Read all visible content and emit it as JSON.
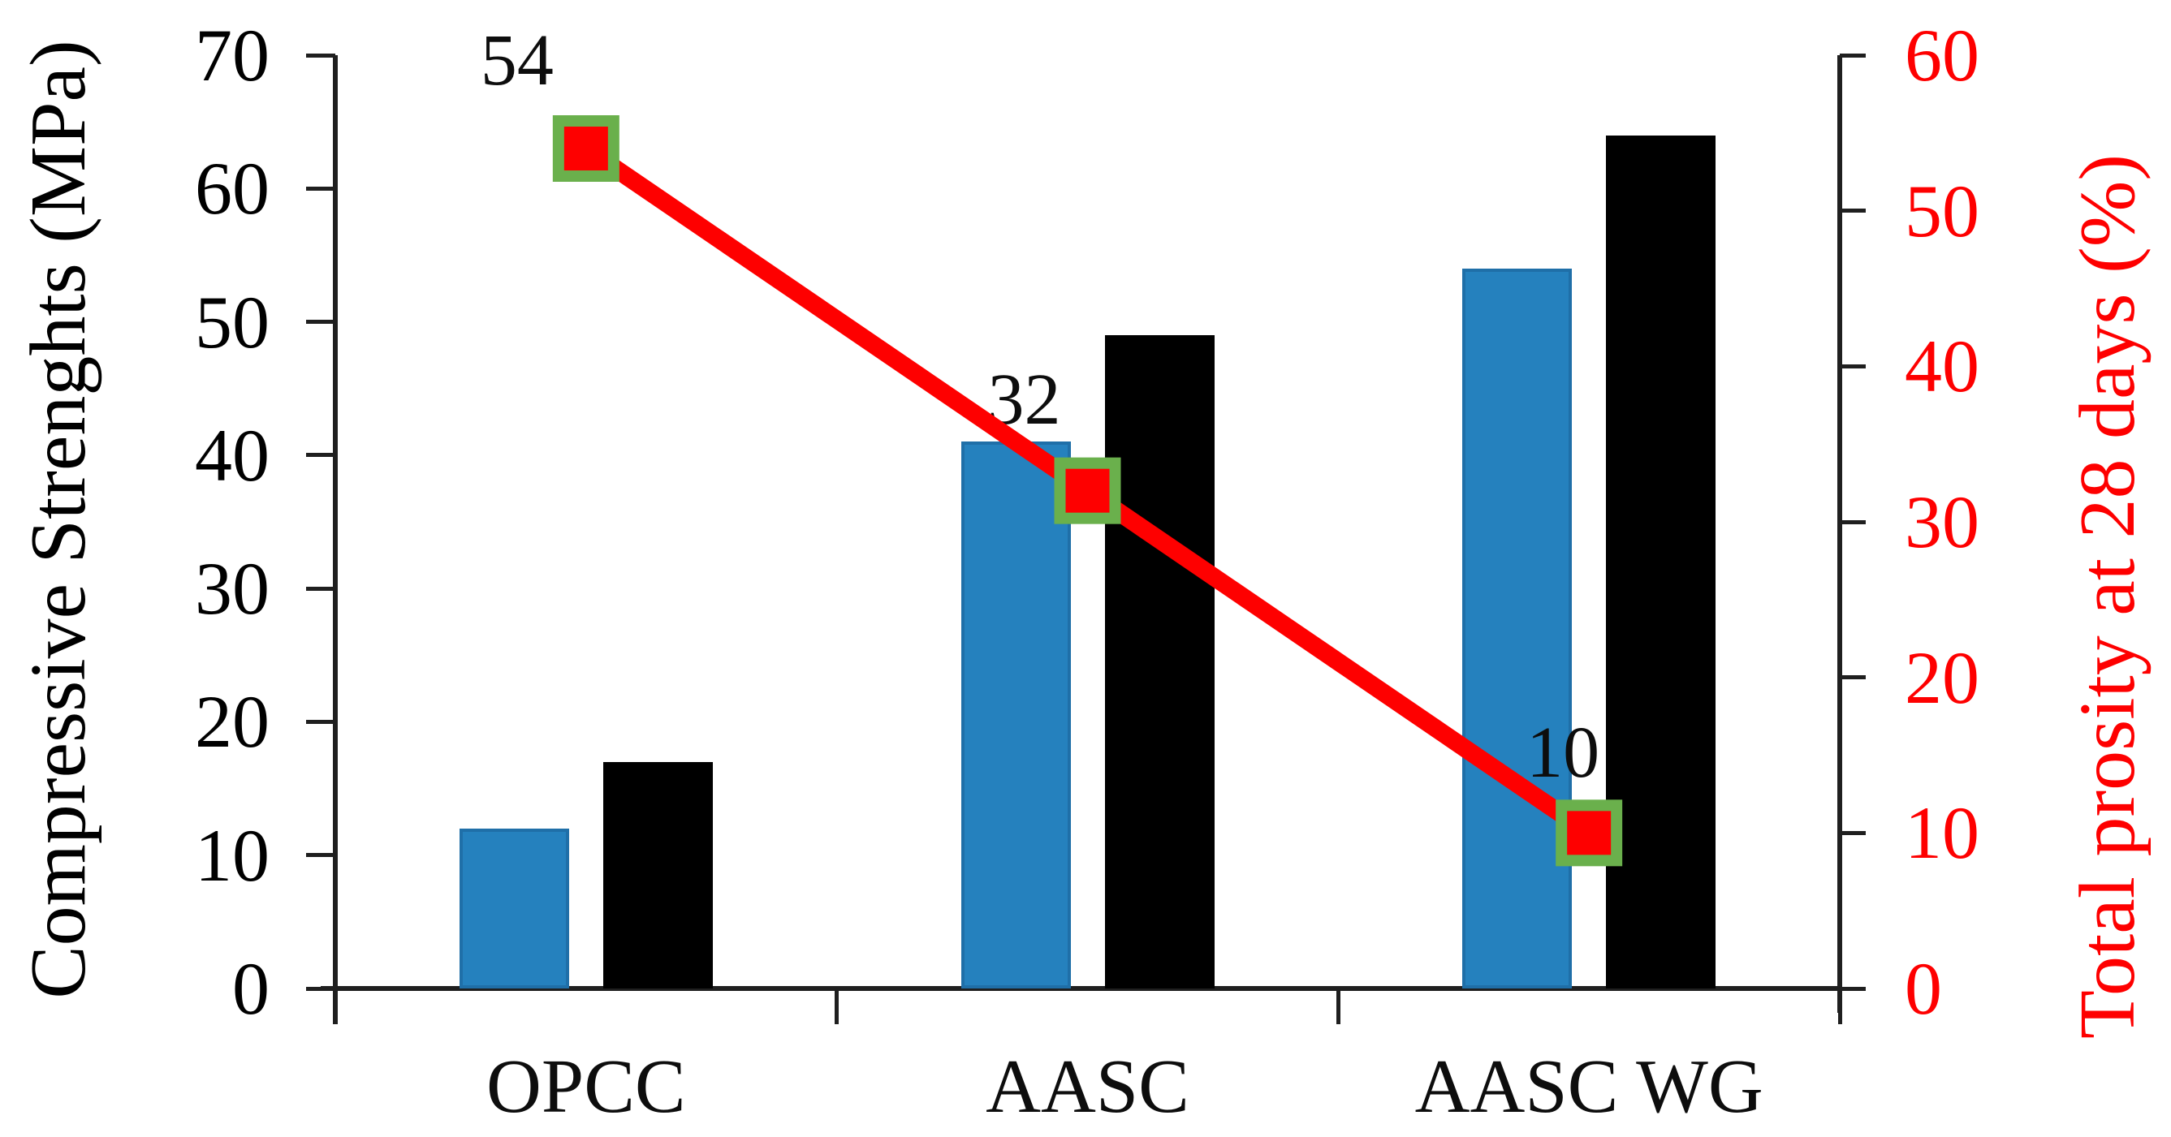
{
  "chart_data": {
    "type": "bar",
    "subtype": "grouped-bars-with-line-overlay",
    "background": "#FFFFFF",
    "grid": false,
    "legend": false,
    "title": "",
    "categories": [
      "OPCC",
      "AASC",
      "AASC WG"
    ],
    "series": [
      {
        "name": "compressive-strength-blue-bar",
        "type": "bar",
        "axis": "left",
        "color": "#2581BE",
        "edge_color": "#1F6FA8",
        "values": [
          12,
          41,
          54
        ]
      },
      {
        "name": "compressive-strength-black-bar",
        "type": "bar",
        "axis": "left",
        "color": "#000000",
        "edge_color": "#000000",
        "values": [
          17,
          49,
          64
        ]
      },
      {
        "name": "total-porosity-line",
        "type": "line",
        "axis": "right",
        "color": "#FE0000",
        "marker_shape": "square",
        "marker_fill": "#FE0000",
        "marker_border_color": "#6AB04C",
        "values": [
          54,
          32,
          10
        ],
        "data_labels": [
          "54",
          "32",
          "10"
        ]
      }
    ],
    "left_axis": {
      "label": "Compressive Strenghts (MPa)",
      "min": 0,
      "max": 70,
      "step": 10,
      "tick_labels": [
        "0",
        "10",
        "20",
        "30",
        "40",
        "50",
        "60",
        "70"
      ],
      "color": "#000000"
    },
    "right_axis": {
      "label": "Total prosity at 28 days (%)",
      "min": 0,
      "max": 60,
      "step": 10,
      "tick_labels": [
        "0",
        "10",
        "20",
        "30",
        "40",
        "50",
        "60"
      ],
      "color": "#FE0000"
    },
    "x_axis": {
      "tick_labels": [
        "OPCC",
        "AASC",
        "AASC WG"
      ],
      "color": "#000000"
    }
  }
}
